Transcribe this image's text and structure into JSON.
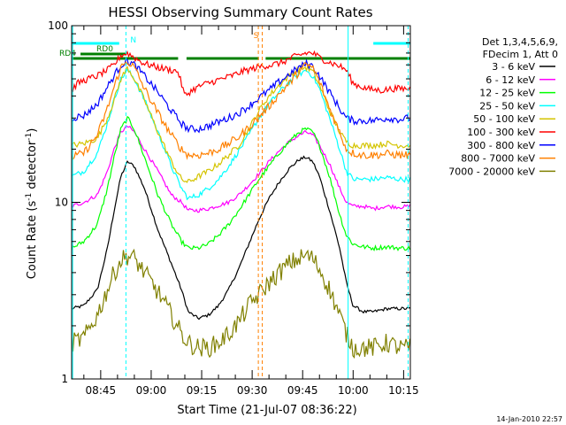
{
  "chart_data": {
    "type": "line",
    "title": "HESSI Observing Summary Count Rates",
    "xlabel": "Start Time (21-Jul-07 08:36:22)",
    "ylabel": "Count Rate (s",
    "ylabel_sup": "-1",
    "ylabel_tail": " detector",
    "ylabel_sup2": "-1",
    "ylabel_close": ")",
    "y_scale": "log",
    "ylim": [
      1,
      100
    ],
    "xlim": [
      "08:36:22",
      "10:17:00"
    ],
    "x_ticks": [
      "08:45",
      "09:00",
      "09:15",
      "09:30",
      "09:45",
      "10:00",
      "10:15"
    ],
    "y_ticks": [
      "100",
      "10",
      "1"
    ],
    "legend_header": [
      "Det 1,3,4,5,6,9,",
      "FDecim 1, Att 0"
    ],
    "legend_placement": "right",
    "footer": "14-Jan-2010 22:57",
    "observing_segments": [
      {
        "label": "",
        "start": "08:36:22",
        "end": "08:50:30",
        "color": "#00ffff"
      },
      {
        "label": "",
        "start": "10:06:00",
        "end": "10:17:00",
        "color": "#00ffff"
      },
      {
        "label": "RD0",
        "start": "08:39:00",
        "end": "08:52:30",
        "color": "#008000"
      },
      {
        "label": "RD4",
        "start": "08:36:22",
        "end": "09:08:00",
        "color": "#008000"
      },
      {
        "label": "",
        "start": "09:10:30",
        "end": "09:32:00",
        "color": "#008000"
      },
      {
        "label": "",
        "start": "09:34:00",
        "end": "10:17:00",
        "color": "#008000"
      }
    ],
    "markers": [
      {
        "label": "N",
        "time": "08:52:30",
        "color": "#00ffff"
      },
      {
        "label": "S",
        "time": "09:32:30",
        "color": "#ff8000"
      }
    ],
    "vertical_lines": [
      {
        "time": "08:36:40",
        "color": "#00ffff",
        "style": "solid"
      },
      {
        "time": "08:52:30",
        "color": "#00ffff",
        "style": "dashed"
      },
      {
        "time": "09:31:50",
        "color": "#ff8000",
        "style": "dashed"
      },
      {
        "time": "09:33:00",
        "color": "#ff8000",
        "style": "dashed"
      },
      {
        "time": "09:58:30",
        "color": "#00ffff",
        "style": "solid"
      },
      {
        "time": "10:16:20",
        "color": "#00ffff",
        "style": "dashed"
      }
    ],
    "series": [
      {
        "name": "3 - 6 keV",
        "color": "#000000",
        "x": [
          "08:36:22",
          "08:40",
          "08:44",
          "08:47",
          "08:49",
          "08:51",
          "08:53",
          "08:55",
          "08:58",
          "09:02",
          "09:06",
          "09:09",
          "09:11",
          "09:14",
          "09:17",
          "09:20",
          "09:23",
          "09:26",
          "09:29",
          "09:32",
          "09:35",
          "09:38",
          "09:41",
          "09:44",
          "09:46",
          "09:48",
          "09:50",
          "09:53",
          "09:56",
          "09:58",
          "10:00",
          "10:03",
          "10:06",
          "10:10",
          "10:14",
          "10:17"
        ],
        "y": [
          2.5,
          2.6,
          3.2,
          5.5,
          9,
          14,
          17,
          16,
          12,
          7,
          4.5,
          3.2,
          2.4,
          2.2,
          2.3,
          2.6,
          3.2,
          4.2,
          5.8,
          8,
          10.5,
          13,
          15.5,
          17.5,
          18,
          17,
          14,
          9,
          5.5,
          3.5,
          2.6,
          2.4,
          2.4,
          2.5,
          2.5,
          2.5
        ]
      },
      {
        "name": "6 - 12 keV",
        "color": "#ff00ff",
        "x": [
          "08:36:22",
          "08:40",
          "08:44",
          "08:47",
          "08:49",
          "08:51",
          "08:53",
          "08:55",
          "08:58",
          "09:02",
          "09:06",
          "09:09",
          "09:11",
          "09:14",
          "09:17",
          "09:20",
          "09:23",
          "09:26",
          "09:29",
          "09:32",
          "09:35",
          "09:38",
          "09:41",
          "09:44",
          "09:46",
          "09:48",
          "09:50",
          "09:53",
          "09:56",
          "09:58",
          "10:00",
          "10:03",
          "10:06",
          "10:10",
          "10:14",
          "10:17"
        ],
        "y": [
          9.5,
          10,
          11,
          15,
          20,
          25,
          27,
          25,
          20,
          15,
          11,
          10,
          9,
          9,
          9.2,
          9.6,
          10,
          11,
          12.5,
          14.5,
          17,
          19.5,
          22,
          24,
          25,
          24,
          21,
          16.5,
          12,
          10,
          9.5,
          9.5,
          9.2,
          9.5,
          9.4,
          9.5
        ]
      },
      {
        "name": "12 - 25 keV",
        "color": "#00ff00",
        "x": [
          "08:36:22",
          "08:40",
          "08:44",
          "08:47",
          "08:49",
          "08:51",
          "08:53",
          "08:55",
          "08:58",
          "09:02",
          "09:06",
          "09:09",
          "09:11",
          "09:14",
          "09:17",
          "09:20",
          "09:23",
          "09:26",
          "09:29",
          "09:32",
          "09:35",
          "09:38",
          "09:41",
          "09:44",
          "09:46",
          "09:48",
          "09:50",
          "09:53",
          "09:56",
          "09:58",
          "10:00",
          "10:03",
          "10:06",
          "10:10",
          "10:14",
          "10:17"
        ],
        "y": [
          5.5,
          6,
          7.5,
          12,
          18,
          26,
          30,
          26,
          18,
          11,
          7.5,
          6,
          5.5,
          5.5,
          5.8,
          6.5,
          7.5,
          9,
          11,
          13.5,
          16,
          19,
          22,
          25,
          26,
          25,
          21,
          14,
          8.5,
          6.5,
          5.8,
          5.6,
          5.5,
          5.6,
          5.5,
          5.5
        ]
      },
      {
        "name": "25 - 50 keV",
        "color": "#00ffff",
        "x": [
          "08:36:22",
          "08:40",
          "08:44",
          "08:47",
          "08:49",
          "08:51",
          "08:53",
          "08:55",
          "08:58",
          "09:02",
          "09:06",
          "09:09",
          "09:11",
          "09:14",
          "09:17",
          "09:20",
          "09:23",
          "09:26",
          "09:29",
          "09:32",
          "09:35",
          "09:38",
          "09:41",
          "09:44",
          "09:46",
          "09:48",
          "09:50",
          "09:53",
          "09:56",
          "09:58",
          "10:00",
          "10:03",
          "10:06",
          "10:10",
          "10:14",
          "10:17"
        ],
        "y": [
          14,
          15,
          19,
          28,
          38,
          50,
          56,
          50,
          38,
          25,
          16,
          12,
          10.5,
          11,
          12,
          13.5,
          16,
          19.5,
          24,
          30,
          36,
          42,
          48,
          53,
          56,
          52,
          44,
          30,
          20,
          15,
          13.5,
          13.5,
          13.5,
          13.8,
          13.5,
          13.5
        ]
      },
      {
        "name": "50 - 100 keV",
        "color": "#d4c400",
        "x": [
          "08:36:22",
          "08:40",
          "08:44",
          "08:47",
          "08:49",
          "08:51",
          "08:53",
          "08:55",
          "08:58",
          "09:02",
          "09:06",
          "09:09",
          "09:11",
          "09:14",
          "09:17",
          "09:20",
          "09:23",
          "09:26",
          "09:29",
          "09:32",
          "09:35",
          "09:38",
          "09:41",
          "09:44",
          "09:46",
          "09:48",
          "09:50",
          "09:53",
          "09:56",
          "09:58",
          "10:00",
          "10:03",
          "10:06",
          "10:10",
          "10:14",
          "10:17"
        ],
        "y": [
          21,
          21.5,
          23,
          30,
          38,
          50,
          58,
          50,
          38,
          25,
          17,
          13.5,
          13,
          14,
          15,
          16.5,
          18.5,
          21,
          26,
          33,
          40,
          46,
          52,
          57,
          58,
          55,
          46,
          33,
          25,
          22,
          21,
          21,
          21,
          21.5,
          21,
          21
        ]
      },
      {
        "name": "100 - 300 keV",
        "color": "#ff0000",
        "x": [
          "08:36:22",
          "08:38",
          "08:40",
          "08:44",
          "08:47",
          "08:49",
          "08:51",
          "08:53",
          "08:55",
          "08:58",
          "09:02",
          "09:06",
          "09:08",
          "09:10",
          "09:12",
          "09:15",
          "09:18",
          "09:21",
          "09:24",
          "09:27",
          "09:30",
          "09:33",
          "09:36",
          "09:39",
          "09:42",
          "09:44",
          "09:46",
          "09:48",
          "09:50",
          "09:53",
          "09:56",
          "09:58",
          "10:00",
          "10:04",
          "10:08",
          "10:12",
          "10:17"
        ],
        "y": [
          43,
          47,
          49,
          52,
          56,
          60,
          68,
          70,
          66,
          61,
          58,
          56,
          55,
          40,
          43,
          46,
          48,
          50,
          52,
          55,
          57,
          59,
          60,
          62,
          66,
          68,
          70,
          70,
          66,
          62,
          59,
          56,
          47,
          44,
          43,
          44,
          44
        ]
      },
      {
        "name": "300 - 800 keV",
        "color": "#0000ff",
        "x": [
          "08:36:22",
          "08:40",
          "08:44",
          "08:47",
          "08:49",
          "08:51",
          "08:53",
          "08:55",
          "08:58",
          "09:02",
          "09:06",
          "09:09",
          "09:11",
          "09:14",
          "09:17",
          "09:20",
          "09:23",
          "09:26",
          "09:29",
          "09:32",
          "09:35",
          "09:38",
          "09:41",
          "09:44",
          "09:46",
          "09:48",
          "09:50",
          "09:53",
          "09:56",
          "09:58",
          "10:00",
          "10:03",
          "10:06",
          "10:10",
          "10:14",
          "10:17"
        ],
        "y": [
          30,
          31,
          36,
          45,
          52,
          60,
          63,
          60,
          52,
          42,
          33,
          28,
          26,
          26,
          27,
          28.5,
          30,
          32,
          35,
          39,
          43,
          48,
          53,
          58,
          61,
          59,
          52,
          42,
          34,
          30,
          29,
          29,
          29,
          30,
          29.5,
          30
        ]
      },
      {
        "name": "800 - 7000 keV",
        "color": "#ff8000",
        "x": [
          "08:36:22",
          "08:40",
          "08:44",
          "08:47",
          "08:49",
          "08:51",
          "08:53",
          "08:55",
          "08:58",
          "09:02",
          "09:06",
          "09:09",
          "09:11",
          "09:14",
          "09:17",
          "09:20",
          "09:23",
          "09:26",
          "09:29",
          "09:32",
          "09:35",
          "09:38",
          "09:41",
          "09:44",
          "09:46",
          "09:48",
          "09:50",
          "09:53",
          "09:56",
          "09:58",
          "10:00",
          "10:03",
          "10:06",
          "10:10",
          "10:14",
          "10:17"
        ],
        "y": [
          18,
          19,
          24,
          34,
          45,
          58,
          63,
          58,
          44,
          32,
          24,
          20,
          18.5,
          18.5,
          19,
          20,
          21.5,
          23.5,
          26.5,
          30.5,
          35,
          41,
          47,
          55,
          60,
          58,
          48,
          34,
          25,
          20,
          19,
          18.5,
          18.5,
          18.8,
          18.5,
          18.5
        ]
      },
      {
        "name": "7000 - 20000 keV",
        "color": "#808000",
        "x": [
          "08:36:22",
          "08:40",
          "08:44",
          "08:47",
          "08:49",
          "08:51",
          "08:53",
          "08:55",
          "08:58",
          "09:02",
          "09:06",
          "09:09",
          "09:11",
          "09:14",
          "09:17",
          "09:20",
          "09:23",
          "09:26",
          "09:29",
          "09:32",
          "09:35",
          "09:38",
          "09:41",
          "09:44",
          "09:46",
          "09:48",
          "09:50",
          "09:53",
          "09:56",
          "09:58",
          "10:00",
          "10:03",
          "10:06",
          "10:10",
          "10:14",
          "10:17"
        ],
        "y": [
          1.6,
          1.7,
          2.3,
          3.2,
          4,
          4.7,
          5,
          4.8,
          4,
          3.1,
          2.3,
          1.8,
          1.6,
          1.5,
          1.5,
          1.6,
          1.8,
          2.1,
          2.6,
          3,
          3.5,
          4,
          4.5,
          4.8,
          5,
          4.8,
          4.2,
          3.2,
          2.3,
          1.8,
          1.5,
          1.5,
          1.5,
          1.6,
          1.5,
          1.5
        ]
      }
    ]
  }
}
